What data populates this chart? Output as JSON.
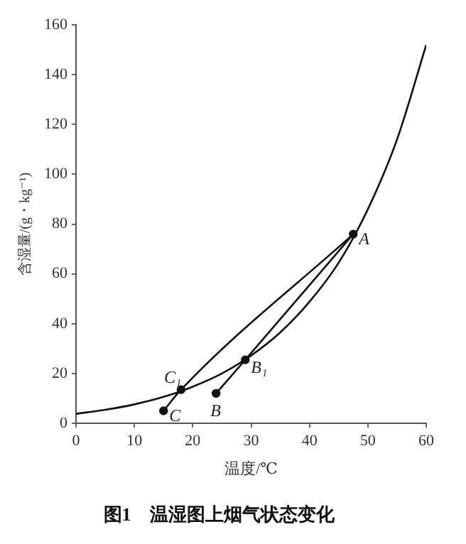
{
  "chart_data": {
    "type": "line",
    "title": "图1　温湿图上烟气状态变化",
    "xlabel": "温度/℃",
    "ylabel": "含湿量/(g・kg⁻¹)",
    "xlim": [
      0,
      60
    ],
    "ylim": [
      0,
      160
    ],
    "xticks": [
      0,
      10,
      20,
      30,
      40,
      50,
      60
    ],
    "yticks": [
      0,
      20,
      40,
      60,
      80,
      100,
      120,
      140,
      160
    ],
    "grid": false,
    "legend": false,
    "line_style": "solid",
    "series": [
      {
        "marker": "none",
        "color": "#111111",
        "x": [
          0,
          5,
          10,
          15,
          20,
          25,
          30,
          35,
          40,
          45,
          50,
          55,
          60
        ],
        "values": [
          3.8,
          5.4,
          7.6,
          10.6,
          14.7,
          20,
          27.2,
          36.5,
          48.8,
          64.5,
          86,
          114,
          152
        ]
      },
      {
        "marker": "none",
        "color": "#111111",
        "x": [
          15,
          18,
          47.5
        ],
        "values": [
          5,
          13.5,
          76
        ]
      },
      {
        "marker": "none",
        "color": "#111111",
        "x": [
          24,
          29,
          47.5
        ],
        "values": [
          12,
          25.5,
          76
        ]
      },
      {
        "type": "scatter",
        "marker": "circle",
        "color": "#111111",
        "x": [
          47.5,
          29,
          18,
          24,
          15
        ],
        "values": [
          76,
          25.5,
          13.5,
          12,
          5
        ]
      }
    ],
    "annotations": [
      {
        "text": "A",
        "x": 47.5,
        "y": 76
      },
      {
        "text": "B₁",
        "x": 29,
        "y": 25.5
      },
      {
        "text": "C₁",
        "x": 18,
        "y": 13.5
      },
      {
        "text": "B",
        "x": 24,
        "y": 12
      },
      {
        "text": "C",
        "x": 15,
        "y": 5
      }
    ]
  }
}
